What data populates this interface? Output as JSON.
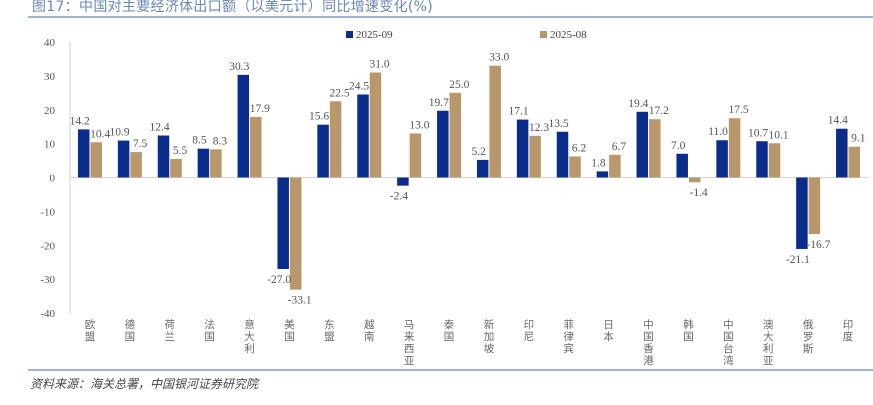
{
  "header": {
    "title": "图17：中国对主要经济体出口额（以美元计）同比增速变化(%)"
  },
  "footer": {
    "source": "资料来源：海关总署，中国银河证券研究院"
  },
  "colors": {
    "series1": "#0a2d8c",
    "series2": "#b8976a",
    "axis": "#d9d9d9",
    "title": "#6a86b8",
    "rule": "#9fb3d6"
  },
  "chart_data": {
    "type": "bar",
    "title": "中国对主要经济体出口额（以美元计）同比增速变化(%)",
    "xlabel": "",
    "ylabel": "",
    "ylim": [
      -40,
      40
    ],
    "yticks": [
      40,
      30,
      20,
      10,
      0,
      -10,
      -20,
      -30,
      -40
    ],
    "grid": false,
    "legend": "top-center",
    "categories": [
      "欧盟",
      "德国",
      "荷兰",
      "法国",
      "意大利",
      "美国",
      "东盟",
      "越南",
      "马来西亚",
      "泰国",
      "新加坡",
      "印尼",
      "菲律宾",
      "日本",
      "中国香港",
      "韩国",
      "中国台湾",
      "澳大利亚",
      "俄罗斯",
      "印度"
    ],
    "series": [
      {
        "name": "2025-09",
        "values": [
          14.2,
          10.9,
          12.4,
          8.5,
          30.3,
          -27.0,
          15.6,
          24.5,
          -2.4,
          19.7,
          5.2,
          17.1,
          13.5,
          1.8,
          19.4,
          7.0,
          11.0,
          10.7,
          -21.1,
          14.4
        ]
      },
      {
        "name": "2025-08",
        "values": [
          10.4,
          7.5,
          5.5,
          8.3,
          17.9,
          -33.1,
          22.5,
          31.0,
          13.0,
          25.0,
          33.0,
          12.3,
          6.2,
          6.7,
          17.2,
          -1.4,
          17.5,
          10.1,
          -16.7,
          9.1
        ]
      }
    ]
  }
}
